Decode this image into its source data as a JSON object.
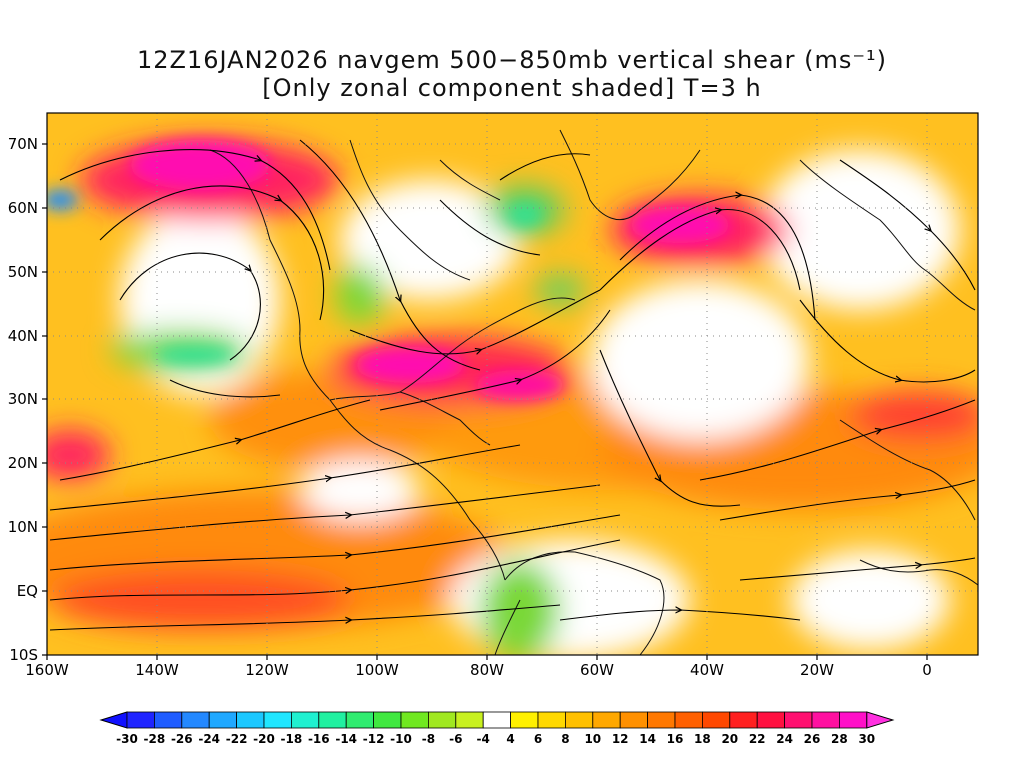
{
  "title": {
    "line1": "12Z16JAN2026 navgem 500−850mb vertical shear (ms⁻¹)",
    "line2": "[Only zonal component shaded] T=3 h"
  },
  "map": {
    "lon_range": [
      -160,
      10
    ],
    "lat_range": [
      -10,
      75
    ],
    "lat_ticks": [
      "70N",
      "60N",
      "50N",
      "40N",
      "30N",
      "20N",
      "10N",
      "EQ",
      "10S"
    ],
    "lon_ticks": [
      "160W",
      "140W",
      "120W",
      "100W",
      "80W",
      "60W",
      "40W",
      "20W",
      "0"
    ],
    "shading": "zonal component of 500-850mb vertical shear",
    "overlay": "streamlines of vertical shear vector"
  },
  "colorbar": {
    "labels": [
      "-30",
      "-28",
      "-26",
      "-24",
      "-22",
      "-20",
      "-18",
      "-16",
      "-14",
      "-12",
      "-10",
      "-8",
      "-6",
      "-4",
      "4",
      "6",
      "8",
      "10",
      "12",
      "14",
      "16",
      "18",
      "20",
      "22",
      "24",
      "26",
      "28",
      "30"
    ],
    "colors": [
      "#1f24ff",
      "#1f5cff",
      "#2388ff",
      "#1fa8ff",
      "#1cc8ff",
      "#20e6ff",
      "#1ff0d0",
      "#20f0a0",
      "#30ec70",
      "#40e840",
      "#70e820",
      "#a0e820",
      "#c8f020",
      "#ffffff",
      "#fff000",
      "#ffd800",
      "#ffc000",
      "#ffa800",
      "#ff9000",
      "#ff7800",
      "#ff6000",
      "#ff4800",
      "#ff2020",
      "#ff1040",
      "#ff1070",
      "#ff10a0",
      "#ff10c8"
    ],
    "arrow_left": "#1010ff",
    "arrow_right": "#ff30e0"
  }
}
